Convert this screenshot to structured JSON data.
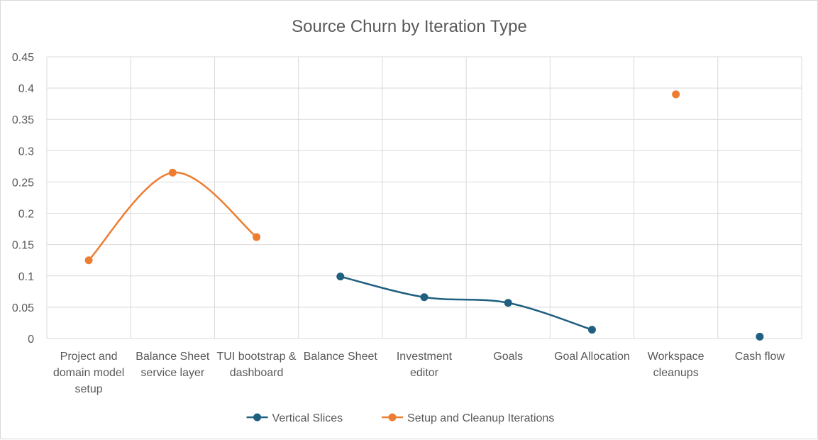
{
  "chart_data": {
    "type": "line",
    "title": "Source Churn by Iteration Type",
    "categories": [
      [
        "Project and",
        "domain model",
        "setup"
      ],
      [
        "Balance Sheet",
        "service layer"
      ],
      [
        "TUI bootstrap &",
        "dashboard"
      ],
      [
        "Balance Sheet"
      ],
      [
        "Investment",
        "editor"
      ],
      [
        "Goals"
      ],
      [
        "Goal Allocation"
      ],
      [
        "Workspace",
        "cleanups"
      ],
      [
        "Cash flow"
      ]
    ],
    "y_ticks": [
      "0",
      "0.05",
      "0.1",
      "0.15",
      "0.2",
      "0.25",
      "0.3",
      "0.35",
      "0.4",
      "0.45"
    ],
    "ylim": [
      0,
      0.45
    ],
    "smooth": true,
    "grid": true,
    "legend_position": "bottom",
    "series": [
      {
        "name": "Vertical Slices",
        "color": "#1f5f7f",
        "values": [
          null,
          null,
          null,
          0.099,
          0.066,
          0.057,
          0.014,
          null,
          0.003
        ]
      },
      {
        "name": "Setup and Cleanup Iterations",
        "color": "#ed7d31",
        "values": [
          0.125,
          0.265,
          0.162,
          null,
          null,
          null,
          null,
          0.39,
          null
        ]
      }
    ]
  }
}
